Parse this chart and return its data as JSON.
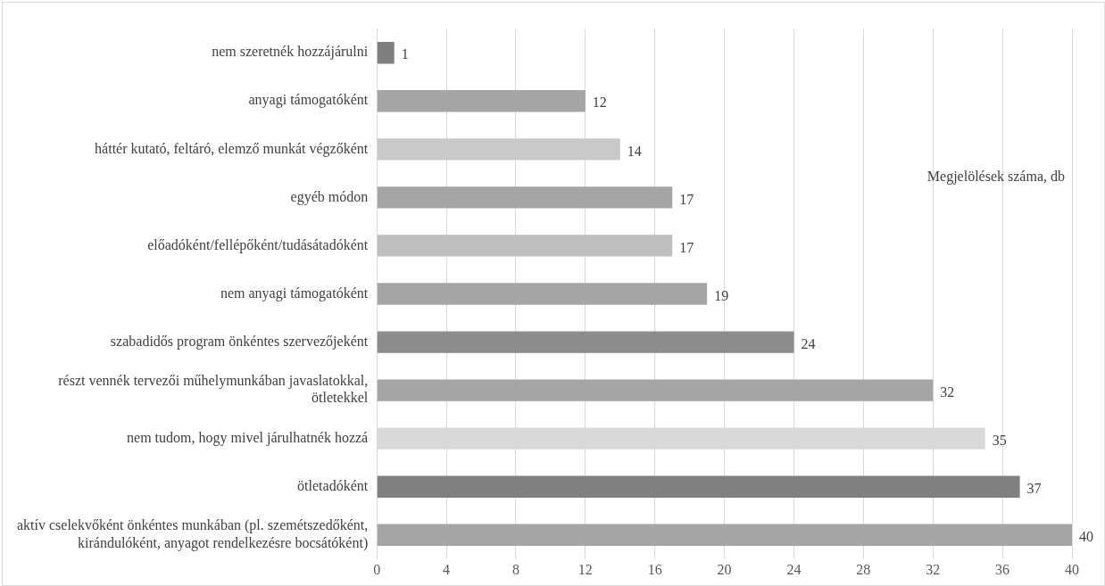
{
  "chart_data": {
    "type": "bar",
    "orientation": "horizontal",
    "xlabel": "Megjelölések száma, db",
    "categories": [
      "nem szeretnék hozzájárulni",
      "anyagi támogatóként",
      "háttér kutató, feltáró, elemző munkát végzőként",
      "egyéb módon",
      "előadóként/fellépőként/tudásátadóként",
      "nem anyagi támogatóként",
      "szabadidős program önkéntes szervezőjeként",
      "részt vennék tervezői műhelymunkában javaslatokkal, ötletekkel",
      "nem tudom, hogy mivel járulhatnék hozzá",
      "ötletadóként",
      "aktív cselekvőként önkéntes munkában (pl. szemétszedőként, kirándulóként, anyagot rendelkezésre bocsátóként)"
    ],
    "values": [
      1,
      12,
      14,
      17,
      17,
      19,
      24,
      32,
      35,
      37,
      40
    ],
    "colors": [
      "#7f7f7f",
      "#a5a5a5",
      "#c9c9c9",
      "#a5a5a5",
      "#bfbfbf",
      "#a5a5a5",
      "#8c8c8c",
      "#a5a5a5",
      "#d9d9d9",
      "#808080",
      "#a5a5a5"
    ],
    "xlim": [
      0,
      40
    ],
    "xticks": [
      0,
      4,
      8,
      12,
      16,
      20,
      24,
      28,
      32,
      36,
      40
    ],
    "grid": "x",
    "data_labels": true,
    "legend": false
  }
}
